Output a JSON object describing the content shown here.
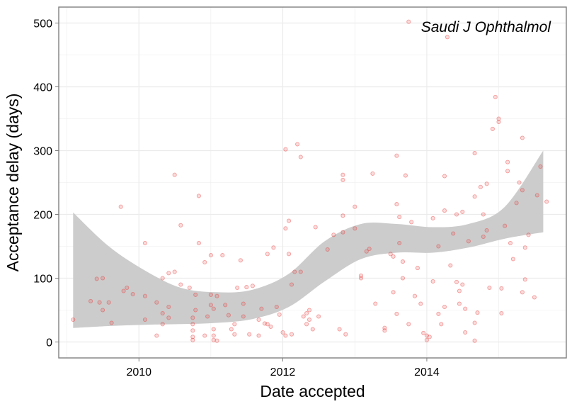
{
  "chart_data": {
    "type": "scatter",
    "annotation": "Saudi J Ophthalmol",
    "xlabel": "Date accepted",
    "ylabel": "Acceptance delay (days)",
    "x_ticks": [
      "2010",
      "2012",
      "2014"
    ],
    "y_ticks": [
      "0",
      "100",
      "200",
      "300",
      "400",
      "500"
    ],
    "x_range": [
      "2008-11-20",
      "2015-12-10"
    ],
    "ylim": [
      -25,
      525
    ],
    "grid": true,
    "colors": {
      "points": "#e8393a",
      "ribbon": "#cccccc",
      "grid": "#ebebeb",
      "border": "#7f7f7f"
    },
    "points": [
      [
        "2009-02-01",
        35
      ],
      [
        "2009-05-01",
        64
      ],
      [
        "2009-06-01",
        99
      ],
      [
        "2009-06-15",
        62
      ],
      [
        "2009-07-01",
        100
      ],
      [
        "2009-07-01",
        50
      ],
      [
        "2009-08-01",
        62
      ],
      [
        "2009-08-15",
        30
      ],
      [
        "2009-10-01",
        212
      ],
      [
        "2009-10-15",
        80
      ],
      [
        "2009-11-01",
        85
      ],
      [
        "2009-12-01",
        75
      ],
      [
        "2010-02-01",
        155
      ],
      [
        "2010-02-01",
        72
      ],
      [
        "2010-02-01",
        35
      ],
      [
        "2010-04-01",
        62
      ],
      [
        "2010-05-01",
        45
      ],
      [
        "2010-05-01",
        100
      ],
      [
        "2010-06-01",
        108
      ],
      [
        "2010-06-01",
        55
      ],
      [
        "2010-07-01",
        262
      ],
      [
        "2010-07-01",
        110
      ],
      [
        "2010-08-01",
        183
      ],
      [
        "2010-08-01",
        90
      ],
      [
        "2010-04-01",
        10
      ],
      [
        "2010-05-01",
        28
      ],
      [
        "2010-06-01",
        38
      ],
      [
        "2010-09-15",
        85
      ],
      [
        "2010-10-01",
        38
      ],
      [
        "2010-10-01",
        28
      ],
      [
        "2010-10-01",
        18
      ],
      [
        "2010-10-01",
        8
      ],
      [
        "2010-10-01",
        3
      ],
      [
        "2010-10-15",
        74
      ],
      [
        "2010-10-15",
        50
      ],
      [
        "2010-11-01",
        155
      ],
      [
        "2010-11-01",
        229
      ],
      [
        "2010-12-01",
        125
      ],
      [
        "2010-12-01",
        10
      ],
      [
        "2010-12-15",
        40
      ],
      [
        "2011-01-01",
        136
      ],
      [
        "2011-01-01",
        74
      ],
      [
        "2011-01-01",
        58
      ],
      [
        "2011-01-15",
        52
      ],
      [
        "2011-01-15",
        20
      ],
      [
        "2011-01-15",
        10
      ],
      [
        "2011-01-15",
        3
      ],
      [
        "2011-02-01",
        72
      ],
      [
        "2011-02-01",
        2
      ],
      [
        "2011-03-01",
        136
      ],
      [
        "2011-03-15",
        58
      ],
      [
        "2011-04-01",
        42
      ],
      [
        "2011-04-15",
        20
      ],
      [
        "2011-05-01",
        28
      ],
      [
        "2011-05-01",
        12
      ],
      [
        "2011-05-15",
        85
      ],
      [
        "2011-06-01",
        128
      ],
      [
        "2011-06-15",
        60
      ],
      [
        "2011-06-15",
        40
      ],
      [
        "2011-07-01",
        86
      ],
      [
        "2011-07-15",
        12
      ],
      [
        "2011-08-01",
        88
      ],
      [
        "2011-09-01",
        35
      ],
      [
        "2011-09-01",
        10
      ],
      [
        "2011-09-15",
        52
      ],
      [
        "2011-10-01",
        29
      ],
      [
        "2011-10-15",
        138
      ],
      [
        "2011-10-15",
        28
      ],
      [
        "2011-11-01",
        24
      ],
      [
        "2011-11-15",
        148
      ],
      [
        "2011-12-01",
        55
      ],
      [
        "2011-12-15",
        43
      ],
      [
        "2012-01-01",
        15
      ],
      [
        "2012-01-15",
        302
      ],
      [
        "2012-01-15",
        178
      ],
      [
        "2012-01-15",
        10
      ],
      [
        "2012-02-01",
        138
      ],
      [
        "2012-02-01",
        190
      ],
      [
        "2012-02-15",
        90
      ],
      [
        "2012-02-15",
        12
      ],
      [
        "2012-03-01",
        110
      ],
      [
        "2012-03-15",
        310
      ],
      [
        "2012-04-01",
        290
      ],
      [
        "2012-04-01",
        110
      ],
      [
        "2012-04-15",
        40
      ],
      [
        "2012-05-01",
        45
      ],
      [
        "2012-05-01",
        28
      ],
      [
        "2012-05-15",
        50
      ],
      [
        "2012-05-15",
        35
      ],
      [
        "2012-06-01",
        20
      ],
      [
        "2012-06-15",
        180
      ],
      [
        "2012-07-01",
        40
      ],
      [
        "2012-08-15",
        145
      ],
      [
        "2012-09-15",
        168
      ],
      [
        "2012-10-15",
        20
      ],
      [
        "2012-11-01",
        198
      ],
      [
        "2012-11-01",
        172
      ],
      [
        "2012-11-01",
        262
      ],
      [
        "2012-11-01",
        254
      ],
      [
        "2012-11-15",
        12
      ],
      [
        "2013-01-01",
        212
      ],
      [
        "2013-01-01",
        178
      ],
      [
        "2013-02-01",
        104
      ],
      [
        "2013-02-01",
        100
      ],
      [
        "2013-03-01",
        142
      ],
      [
        "2013-03-15",
        146
      ],
      [
        "2013-04-01",
        264
      ],
      [
        "2013-04-15",
        60
      ],
      [
        "2013-06-01",
        22
      ],
      [
        "2013-06-01",
        18
      ],
      [
        "2013-07-01",
        138
      ],
      [
        "2013-07-15",
        134
      ],
      [
        "2013-07-15",
        78
      ],
      [
        "2013-08-01",
        292
      ],
      [
        "2013-08-01",
        216
      ],
      [
        "2013-08-01",
        44
      ],
      [
        "2013-08-15",
        196
      ],
      [
        "2013-08-15",
        155
      ],
      [
        "2013-09-01",
        126
      ],
      [
        "2013-09-01",
        100
      ],
      [
        "2013-09-15",
        261
      ],
      [
        "2013-10-01",
        502
      ],
      [
        "2013-10-01",
        28
      ],
      [
        "2013-10-15",
        188
      ],
      [
        "2013-11-01",
        72
      ],
      [
        "2013-11-15",
        116
      ],
      [
        "2013-12-01",
        60
      ],
      [
        "2013-12-15",
        14
      ],
      [
        "2014-01-01",
        3
      ],
      [
        "2014-01-01",
        10
      ],
      [
        "2014-01-15",
        8
      ],
      [
        "2014-02-01",
        194
      ],
      [
        "2014-02-01",
        95
      ],
      [
        "2014-03-01",
        150
      ],
      [
        "2014-03-01",
        44
      ],
      [
        "2014-03-15",
        28
      ],
      [
        "2014-04-01",
        260
      ],
      [
        "2014-04-01",
        206
      ],
      [
        "2014-04-01",
        55
      ],
      [
        "2014-04-15",
        478
      ],
      [
        "2014-05-01",
        120
      ],
      [
        "2014-05-15",
        170
      ],
      [
        "2014-06-01",
        200
      ],
      [
        "2014-06-01",
        94
      ],
      [
        "2014-06-15",
        80
      ],
      [
        "2014-06-15",
        60
      ],
      [
        "2014-07-01",
        204
      ],
      [
        "2014-07-01",
        90
      ],
      [
        "2014-07-15",
        52
      ],
      [
        "2014-07-15",
        15
      ],
      [
        "2014-08-01",
        158
      ],
      [
        "2014-09-01",
        296
      ],
      [
        "2014-09-01",
        228
      ],
      [
        "2014-09-01",
        30
      ],
      [
        "2014-09-01",
        2
      ],
      [
        "2014-09-15",
        46
      ],
      [
        "2014-10-01",
        243
      ],
      [
        "2014-10-15",
        165
      ],
      [
        "2014-10-15",
        200
      ],
      [
        "2014-11-01",
        248
      ],
      [
        "2014-11-01",
        175
      ],
      [
        "2014-11-15",
        85
      ],
      [
        "2014-12-01",
        334
      ],
      [
        "2014-12-15",
        384
      ],
      [
        "2015-01-01",
        350
      ],
      [
        "2015-01-01",
        345
      ],
      [
        "2015-01-15",
        84
      ],
      [
        "2015-01-15",
        45
      ],
      [
        "2015-02-01",
        182
      ],
      [
        "2015-02-15",
        268
      ],
      [
        "2015-02-15",
        282
      ],
      [
        "2015-03-01",
        155
      ],
      [
        "2015-03-15",
        130
      ],
      [
        "2015-04-01",
        218
      ],
      [
        "2015-04-15",
        250
      ],
      [
        "2015-05-01",
        238
      ],
      [
        "2015-05-01",
        320
      ],
      [
        "2015-05-15",
        98
      ],
      [
        "2015-05-15",
        148
      ],
      [
        "2015-06-01",
        168
      ],
      [
        "2015-07-01",
        70
      ],
      [
        "2015-07-15",
        230
      ],
      [
        "2015-08-01",
        275
      ],
      [
        "2015-09-01",
        220
      ],
      [
        "2015-05-01",
        78
      ]
    ],
    "smooth_ribbon": {
      "x": [
        "2009-02-01",
        "2009-08-01",
        "2010-02-01",
        "2010-08-01",
        "2011-02-01",
        "2011-08-01",
        "2012-02-01",
        "2012-08-01",
        "2013-02-01",
        "2013-08-01",
        "2014-02-01",
        "2014-08-01",
        "2015-02-01",
        "2015-08-15"
      ],
      "lower": [
        22,
        25,
        27,
        28,
        30,
        36,
        55,
        95,
        130,
        140,
        140,
        148,
        162,
        172
      ],
      "upper": [
        203,
        150,
        112,
        85,
        78,
        82,
        107,
        158,
        185,
        185,
        180,
        185,
        212,
        300
      ]
    }
  }
}
